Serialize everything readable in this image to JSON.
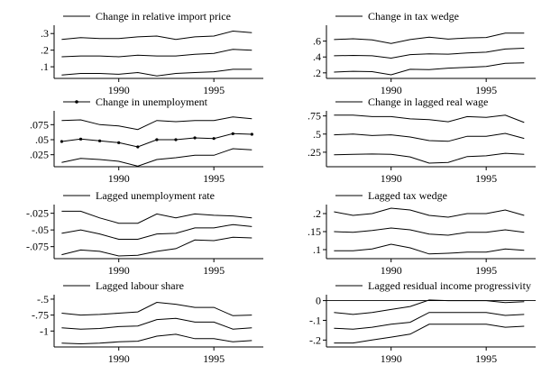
{
  "chart_data": [
    {
      "type": "line",
      "title": "Change in relative import price",
      "x": [
        1987,
        1988,
        1989,
        1990,
        1991,
        1992,
        1993,
        1994,
        1995,
        1996,
        1997
      ],
      "x_ticks": [
        1990,
        1995
      ],
      "y_ticks": [
        {
          "v": 0.1,
          "label": ".1"
        },
        {
          "v": 0.2,
          "label": ".2"
        },
        {
          "v": 0.3,
          "label": ".3"
        }
      ],
      "ylim": [
        0.03,
        0.35
      ],
      "series": [
        {
          "values": [
            0.265,
            0.275,
            0.27,
            0.27,
            0.28,
            0.285,
            0.265,
            0.28,
            0.285,
            0.315,
            0.305
          ]
        },
        {
          "values": [
            0.16,
            0.165,
            0.165,
            0.16,
            0.17,
            0.165,
            0.165,
            0.175,
            0.18,
            0.205,
            0.2
          ]
        },
        {
          "values": [
            0.05,
            0.06,
            0.06,
            0.055,
            0.065,
            0.045,
            0.06,
            0.065,
            0.07,
            0.085,
            0.085
          ]
        }
      ],
      "legend_marker": "line"
    },
    {
      "type": "line",
      "title": "Change in tax wedge",
      "x": [
        1987,
        1988,
        1989,
        1990,
        1991,
        1992,
        1993,
        1994,
        1995,
        1996,
        1997
      ],
      "x_ticks": [
        1990,
        1995
      ],
      "y_ticks": [
        {
          "v": 0.2,
          "label": ".2"
        },
        {
          "v": 0.4,
          "label": ".4"
        },
        {
          "v": 0.6,
          "label": ".6"
        }
      ],
      "ylim": [
        0.13,
        0.8
      ],
      "series": [
        {
          "values": [
            0.62,
            0.63,
            0.615,
            0.57,
            0.62,
            0.65,
            0.625,
            0.64,
            0.645,
            0.7,
            0.7
          ]
        },
        {
          "values": [
            0.415,
            0.42,
            0.415,
            0.385,
            0.43,
            0.44,
            0.435,
            0.45,
            0.46,
            0.5,
            0.51
          ]
        },
        {
          "values": [
            0.21,
            0.22,
            0.215,
            0.175,
            0.245,
            0.24,
            0.26,
            0.27,
            0.28,
            0.32,
            0.325
          ]
        }
      ],
      "legend_marker": "line"
    },
    {
      "type": "line",
      "title": "Change in unemployment",
      "x": [
        1987,
        1988,
        1989,
        1990,
        1991,
        1992,
        1993,
        1994,
        1995,
        1996,
        1997
      ],
      "x_ticks": [
        1990,
        1995
      ],
      "y_ticks": [
        {
          "v": 0.025,
          "label": ".025"
        },
        {
          "v": 0.05,
          "label": ".05"
        },
        {
          "v": 0.075,
          "label": ".075"
        }
      ],
      "ylim": [
        0.005,
        0.098
      ],
      "series": [
        {
          "values": [
            0.082,
            0.083,
            0.075,
            0.073,
            0.067,
            0.082,
            0.08,
            0.082,
            0.082,
            0.088,
            0.085
          ]
        },
        {
          "values": [
            0.047,
            0.051,
            0.048,
            0.045,
            0.038,
            0.05,
            0.05,
            0.053,
            0.052,
            0.06,
            0.059
          ],
          "markers": true
        },
        {
          "values": [
            0.012,
            0.019,
            0.017,
            0.014,
            0.006,
            0.017,
            0.02,
            0.024,
            0.024,
            0.035,
            0.033
          ]
        }
      ],
      "legend_marker": "line-dot"
    },
    {
      "type": "line",
      "title": "Change in lagged real wage",
      "x": [
        1987,
        1988,
        1989,
        1990,
        1991,
        1992,
        1993,
        1994,
        1995,
        1996,
        1997
      ],
      "x_ticks": [
        1990,
        1995
      ],
      "y_ticks": [
        {
          "v": 0.25,
          "label": ".25"
        },
        {
          "v": 0.5,
          "label": ".5"
        },
        {
          "v": 0.75,
          "label": ".75"
        }
      ],
      "ylim": [
        0.05,
        0.82
      ],
      "series": [
        {
          "values": [
            0.76,
            0.76,
            0.74,
            0.74,
            0.71,
            0.7,
            0.67,
            0.74,
            0.73,
            0.76,
            0.66
          ]
        },
        {
          "values": [
            0.49,
            0.5,
            0.48,
            0.49,
            0.46,
            0.41,
            0.4,
            0.47,
            0.47,
            0.51,
            0.44
          ]
        },
        {
          "values": [
            0.215,
            0.22,
            0.225,
            0.22,
            0.185,
            0.1,
            0.11,
            0.19,
            0.2,
            0.235,
            0.22
          ]
        }
      ],
      "legend_marker": "line"
    },
    {
      "type": "line",
      "title": "Lagged unemployment rate",
      "x": [
        1987,
        1988,
        1989,
        1990,
        1991,
        1992,
        1993,
        1994,
        1995,
        1996,
        1997
      ],
      "x_ticks": [
        1990,
        1995
      ],
      "y_ticks": [
        {
          "v": -0.075,
          "label": "-.075"
        },
        {
          "v": -0.05,
          "label": "-.05"
        },
        {
          "v": -0.025,
          "label": "-.025"
        }
      ],
      "ylim": [
        -0.093,
        -0.012
      ],
      "series": [
        {
          "values": [
            -0.022,
            -0.022,
            -0.032,
            -0.04,
            -0.04,
            -0.026,
            -0.032,
            -0.026,
            -0.028,
            -0.029,
            -0.032
          ]
        },
        {
          "values": [
            -0.055,
            -0.05,
            -0.056,
            -0.064,
            -0.064,
            -0.056,
            -0.055,
            -0.047,
            -0.047,
            -0.042,
            -0.045
          ]
        },
        {
          "values": [
            -0.087,
            -0.08,
            -0.082,
            -0.089,
            -0.088,
            -0.082,
            -0.078,
            -0.065,
            -0.066,
            -0.061,
            -0.062
          ]
        }
      ],
      "legend_marker": "line"
    },
    {
      "type": "line",
      "title": "Lagged tax wedge",
      "x": [
        1987,
        1988,
        1989,
        1990,
        1991,
        1992,
        1993,
        1994,
        1995,
        1996,
        1997
      ],
      "x_ticks": [
        1990,
        1995
      ],
      "y_ticks": [
        {
          "v": 0.1,
          "label": ".1"
        },
        {
          "v": 0.15,
          "label": ".15"
        },
        {
          "v": 0.2,
          "label": ".2"
        }
      ],
      "ylim": [
        0.075,
        0.225
      ],
      "series": [
        {
          "values": [
            0.205,
            0.195,
            0.2,
            0.215,
            0.21,
            0.195,
            0.19,
            0.2,
            0.2,
            0.21,
            0.195
          ]
        },
        {
          "values": [
            0.15,
            0.148,
            0.153,
            0.16,
            0.155,
            0.143,
            0.14,
            0.148,
            0.148,
            0.155,
            0.148
          ]
        },
        {
          "values": [
            0.097,
            0.097,
            0.102,
            0.115,
            0.105,
            0.088,
            0.09,
            0.093,
            0.093,
            0.102,
            0.098
          ]
        }
      ],
      "legend_marker": "line"
    },
    {
      "type": "line",
      "title": "Lagged labour share",
      "x": [
        1987,
        1988,
        1989,
        1990,
        1991,
        1992,
        1993,
        1994,
        1995,
        1996,
        1997
      ],
      "x_ticks": [
        1990,
        1995
      ],
      "y_ticks": [
        {
          "v": -1,
          "label": "-1"
        },
        {
          "v": -0.75,
          "label": "-.75"
        },
        {
          "v": -0.5,
          "label": "-.5"
        }
      ],
      "ylim": [
        -1.25,
        -0.43
      ],
      "series": [
        {
          "values": [
            -0.72,
            -0.75,
            -0.74,
            -0.72,
            -0.7,
            -0.55,
            -0.58,
            -0.63,
            -0.63,
            -0.76,
            -0.75
          ]
        },
        {
          "values": [
            -0.95,
            -0.97,
            -0.96,
            -0.93,
            -0.92,
            -0.82,
            -0.8,
            -0.86,
            -0.86,
            -0.97,
            -0.95
          ]
        },
        {
          "values": [
            -1.19,
            -1.2,
            -1.19,
            -1.17,
            -1.16,
            -1.08,
            -1.05,
            -1.12,
            -1.12,
            -1.17,
            -1.15
          ]
        }
      ],
      "legend_marker": "line"
    },
    {
      "type": "line",
      "title": "Lagged residual income progressivity",
      "x": [
        1987,
        1988,
        1989,
        1990,
        1991,
        1992,
        1993,
        1994,
        1995,
        1996,
        1997
      ],
      "x_ticks": [
        1990,
        1995
      ],
      "y_ticks": [
        {
          "v": -0.2,
          "label": "-.2"
        },
        {
          "v": -0.1,
          "label": "-.1"
        },
        {
          "v": 0,
          "label": "0"
        }
      ],
      "ylim": [
        -0.235,
        0.03
      ],
      "zero_line": true,
      "series": [
        {
          "values": [
            -0.06,
            -0.07,
            -0.06,
            -0.045,
            -0.03,
            0.003,
            0.0,
            0.0,
            0.0,
            -0.01,
            -0.005
          ]
        },
        {
          "values": [
            -0.14,
            -0.145,
            -0.135,
            -0.12,
            -0.11,
            -0.06,
            -0.06,
            -0.06,
            -0.06,
            -0.075,
            -0.07
          ]
        },
        {
          "values": [
            -0.215,
            -0.215,
            -0.2,
            -0.185,
            -0.17,
            -0.12,
            -0.12,
            -0.12,
            -0.12,
            -0.135,
            -0.13
          ]
        }
      ],
      "legend_marker": "line"
    }
  ]
}
